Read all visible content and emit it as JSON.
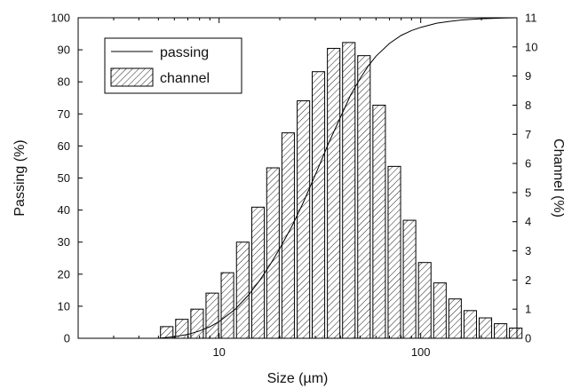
{
  "chart_data": {
    "type": "bar",
    "xscale": "log",
    "xlabel": "Size (µm)",
    "ylabel_left": "Passing (%)",
    "ylabel_right": "Channel (%)",
    "xlim": [
      2,
      300
    ],
    "ylim_left": [
      0,
      100
    ],
    "ylim_right": [
      0,
      11
    ],
    "x_ticks": [
      10,
      100
    ],
    "x_tick_labels": [
      "10",
      "100"
    ],
    "y_left_ticks": [
      0,
      10,
      20,
      30,
      40,
      50,
      60,
      70,
      80,
      90,
      100
    ],
    "y_right_ticks": [
      0,
      1,
      2,
      3,
      4,
      5,
      6,
      7,
      8,
      9,
      10,
      11
    ],
    "grid": false,
    "legend_position": "top-left",
    "legend": [
      {
        "label": "passing",
        "style": "line"
      },
      {
        "label": "channel",
        "style": "hatched-bar"
      }
    ],
    "series": [
      {
        "name": "channel",
        "axis": "right",
        "kind": "bar",
        "x": [
          5.5,
          6.54,
          7.78,
          9.25,
          11,
          13.1,
          15.6,
          18.5,
          22,
          26.2,
          31.1,
          37,
          44,
          52.3,
          62.2,
          74,
          88,
          104.7,
          124.5,
          148,
          176,
          209.3,
          248.9,
          296
        ],
        "y": [
          0.4,
          0.65,
          1.0,
          1.55,
          2.25,
          3.3,
          4.5,
          5.85,
          7.05,
          8.15,
          9.15,
          9.95,
          10.15,
          9.7,
          8.0,
          5.9,
          4.05,
          2.6,
          1.9,
          1.35,
          0.95,
          0.7,
          0.5,
          0.35
        ]
      },
      {
        "name": "passing",
        "axis": "left",
        "kind": "line",
        "x": [
          5,
          6,
          7,
          8,
          9,
          10,
          12,
          14,
          16,
          18,
          20,
          23,
          26,
          30,
          35,
          40,
          45,
          50,
          55,
          60,
          70,
          80,
          90,
          100,
          120,
          140,
          160,
          180,
          200,
          250,
          300
        ],
        "y": [
          0,
          0.5,
          1.2,
          2.3,
          3.6,
          5.2,
          9,
          13.5,
          18.3,
          23.2,
          28,
          35,
          42,
          51,
          61,
          69,
          76,
          81,
          85,
          88,
          92,
          94.5,
          96,
          97,
          98.3,
          98.9,
          99.3,
          99.5,
          99.7,
          99.9,
          100
        ]
      }
    ]
  }
}
